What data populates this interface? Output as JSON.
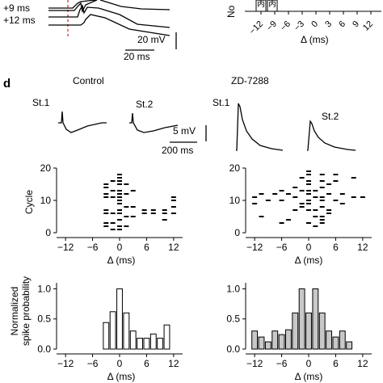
{
  "chart_data": [
    {
      "id": "top-left",
      "type": "line",
      "trace_labels": [
        "+9 ms",
        "+12 ms"
      ],
      "scalebar": {
        "voltage": "20 mV",
        "time": "20 ms"
      },
      "marker_color": "#d9302c"
    },
    {
      "id": "top-right",
      "type": "bar",
      "ylabel_fragment": "No",
      "x_ticks": [
        -12,
        -9,
        -6,
        -3,
        0,
        3,
        6,
        9,
        12
      ],
      "xlabel": "Δ (ms)",
      "visible_bar_labels": [
        "丙",
        "丙"
      ]
    },
    {
      "id": "panel-d",
      "panel_letter": "d",
      "conditions": [
        "Control",
        "ZD-7288"
      ],
      "stimulus_labels": [
        "St.1",
        "St.2"
      ],
      "scalebar": {
        "voltage": "5 mV",
        "time": "200 ms"
      }
    },
    {
      "id": "raster-control",
      "type": "scatter",
      "ylabel": "Cycle",
      "xlabel": "Δ (ms)",
      "x_ticks": [
        -12,
        -6,
        0,
        6,
        12
      ],
      "y_ticks": [
        0,
        10,
        20
      ],
      "xlim": [
        -14,
        14
      ],
      "ylim": [
        0,
        20
      ],
      "points": [
        [
          -3,
          2
        ],
        [
          -3,
          3
        ],
        [
          -3,
          6
        ],
        [
          -3,
          7
        ],
        [
          -3,
          11
        ],
        [
          -3,
          12
        ],
        [
          -3,
          14
        ],
        [
          -3,
          15
        ],
        [
          -1.5,
          1
        ],
        [
          -1.5,
          3
        ],
        [
          -1.5,
          6
        ],
        [
          -1.5,
          11
        ],
        [
          -1.5,
          13
        ],
        [
          -1.5,
          16
        ],
        [
          0,
          1
        ],
        [
          0,
          2
        ],
        [
          0,
          4
        ],
        [
          0,
          6
        ],
        [
          0,
          7
        ],
        [
          0,
          9
        ],
        [
          0,
          10
        ],
        [
          0,
          11
        ],
        [
          0,
          12
        ],
        [
          0,
          13
        ],
        [
          0,
          15
        ],
        [
          0,
          16
        ],
        [
          0,
          17
        ],
        [
          0,
          18
        ],
        [
          1.5,
          2
        ],
        [
          1.5,
          5
        ],
        [
          1.5,
          8
        ],
        [
          1.5,
          12
        ],
        [
          1.5,
          15
        ],
        [
          3,
          5
        ],
        [
          3,
          8
        ],
        [
          3,
          13
        ],
        [
          5.5,
          6
        ],
        [
          5.5,
          7
        ],
        [
          7.5,
          6
        ],
        [
          7.5,
          7
        ],
        [
          10,
          4
        ],
        [
          10,
          6
        ],
        [
          10,
          7
        ],
        [
          12,
          6
        ],
        [
          12,
          8
        ],
        [
          12,
          10
        ],
        [
          12,
          11
        ]
      ]
    },
    {
      "id": "raster-zd",
      "type": "scatter",
      "ylabel": "",
      "xlabel": "Δ (ms)",
      "x_ticks": [
        -12,
        -6,
        0,
        6,
        12
      ],
      "y_ticks": [
        0,
        10,
        20
      ],
      "xlim": [
        -14,
        14
      ],
      "ylim": [
        0,
        20
      ],
      "points": [
        [
          -12,
          9
        ],
        [
          -12,
          11
        ],
        [
          -10.5,
          5
        ],
        [
          -10.5,
          12
        ],
        [
          -9,
          10
        ],
        [
          -7.5,
          12
        ],
        [
          -6,
          3
        ],
        [
          -6,
          10
        ],
        [
          -6,
          13
        ],
        [
          -4.5,
          4
        ],
        [
          -4.5,
          12
        ],
        [
          -3,
          7
        ],
        [
          -3,
          11
        ],
        [
          -3,
          14
        ],
        [
          -1.5,
          8
        ],
        [
          -1.5,
          9
        ],
        [
          -1.5,
          13
        ],
        [
          -1.5,
          17
        ],
        [
          0,
          3
        ],
        [
          0,
          7
        ],
        [
          0,
          9
        ],
        [
          0,
          10
        ],
        [
          0,
          12
        ],
        [
          0,
          13
        ],
        [
          0,
          15
        ],
        [
          0,
          16
        ],
        [
          0,
          18
        ],
        [
          0,
          19
        ],
        [
          1.5,
          2
        ],
        [
          1.5,
          5
        ],
        [
          1.5,
          7
        ],
        [
          1.5,
          11
        ],
        [
          1.5,
          13
        ],
        [
          3,
          3
        ],
        [
          3,
          4
        ],
        [
          3,
          5
        ],
        [
          3,
          8
        ],
        [
          3,
          10
        ],
        [
          3,
          11
        ],
        [
          3,
          14
        ],
        [
          3,
          16
        ],
        [
          3,
          18
        ],
        [
          4.5,
          6
        ],
        [
          4.5,
          7
        ],
        [
          4.5,
          12
        ],
        [
          4.5,
          15
        ],
        [
          6,
          10
        ],
        [
          6,
          16
        ],
        [
          6,
          18
        ],
        [
          7.5,
          9
        ],
        [
          7.5,
          12
        ],
        [
          10,
          11
        ],
        [
          10,
          17
        ],
        [
          12,
          11
        ]
      ]
    },
    {
      "id": "hist-control",
      "type": "bar",
      "ylabel": "Normalized spike probability",
      "xlabel": "Δ (ms)",
      "x_ticks": [
        -12,
        -6,
        0,
        6,
        12
      ],
      "y_ticks": [
        0.0,
        0.5,
        1.0
      ],
      "xlim": [
        -14,
        14
      ],
      "ylim": [
        0,
        1.1
      ],
      "bar_color": "#ffffff",
      "bars": [
        {
          "x": -3,
          "value": 0.44
        },
        {
          "x": -1.5,
          "value": 0.62
        },
        {
          "x": 0,
          "value": 1.0
        },
        {
          "x": 1.5,
          "value": 0.6
        },
        {
          "x": 3,
          "value": 0.3
        },
        {
          "x": 4.5,
          "value": 0.18
        },
        {
          "x": 6,
          "value": 0.18
        },
        {
          "x": 7.5,
          "value": 0.25
        },
        {
          "x": 9,
          "value": 0.18
        },
        {
          "x": 10.5,
          "value": 0.4
        }
      ]
    },
    {
      "id": "hist-zd",
      "type": "bar",
      "ylabel": "",
      "xlabel": "Δ (ms)",
      "x_ticks": [
        -12,
        -6,
        0,
        6,
        12
      ],
      "y_ticks": [
        0.0,
        0.5,
        1.0
      ],
      "xlim": [
        -14,
        14
      ],
      "ylim": [
        0,
        1.1
      ],
      "bar_color": "#c8c8c8",
      "bars": [
        {
          "x": -12,
          "value": 0.3
        },
        {
          "x": -10.5,
          "value": 0.2
        },
        {
          "x": -9,
          "value": 0.12
        },
        {
          "x": -7.5,
          "value": 0.3
        },
        {
          "x": -6,
          "value": 0.24
        },
        {
          "x": -4.5,
          "value": 0.32
        },
        {
          "x": -3,
          "value": 0.6
        },
        {
          "x": -1.5,
          "value": 1.0
        },
        {
          "x": 0,
          "value": 0.6
        },
        {
          "x": 1.5,
          "value": 1.0
        },
        {
          "x": 3,
          "value": 0.6
        },
        {
          "x": 4.5,
          "value": 0.3
        },
        {
          "x": 6,
          "value": 0.2
        },
        {
          "x": 7.5,
          "value": 0.3
        },
        {
          "x": 9,
          "value": 0.12
        }
      ]
    }
  ]
}
